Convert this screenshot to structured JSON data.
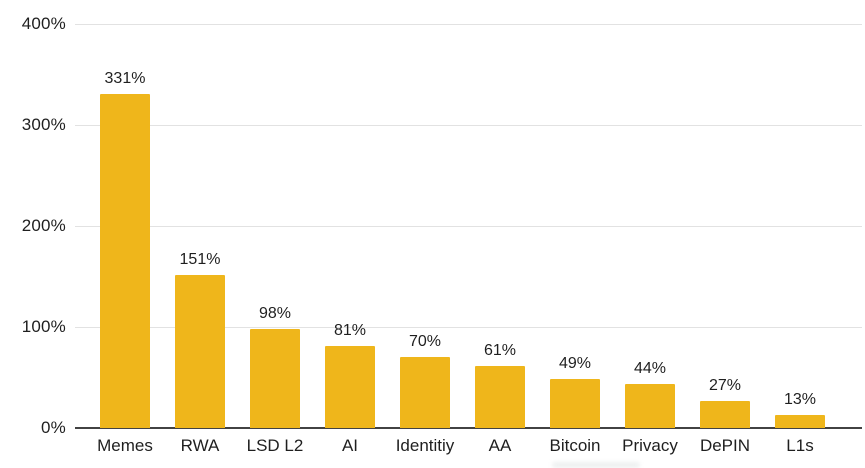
{
  "chart_data": {
    "type": "bar",
    "categories": [
      "Memes",
      "RWA",
      "LSD L2",
      "AI",
      "Identitiy",
      "AA",
      "Bitcoin",
      "Privacy",
      "DePIN",
      "L1s"
    ],
    "values": [
      331,
      151,
      98,
      81,
      70,
      61,
      49,
      44,
      27,
      13
    ],
    "value_labels": [
      "331%",
      "151%",
      "98%",
      "81%",
      "70%",
      "61%",
      "49%",
      "44%",
      "27%",
      "13%"
    ],
    "title": "",
    "xlabel": "",
    "ylabel": "",
    "ylim": [
      0,
      400
    ],
    "y_ticks": [
      0,
      100,
      200,
      300,
      400
    ],
    "y_tick_labels": [
      "0%",
      "100%",
      "200%",
      "300%",
      "400%"
    ],
    "grid": true,
    "legend": "none",
    "bar_color": "#EFB61B",
    "gridline_color": "#E2E2E2",
    "axis_line_color": "#424242",
    "text_color": "#1F1F1F",
    "background": "#FFFFFF"
  }
}
